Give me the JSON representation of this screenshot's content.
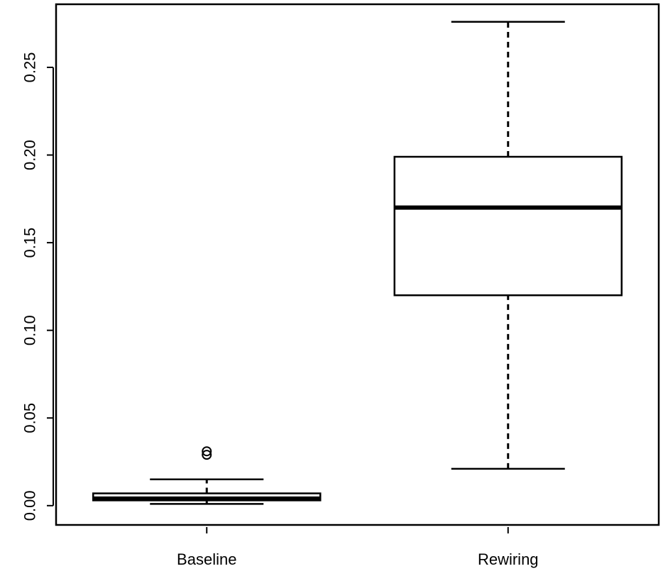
{
  "chart_data": {
    "type": "boxplot",
    "title": "",
    "xlabel": "",
    "ylabel": "",
    "ylim": [
      -0.011,
      0.286
    ],
    "grid": false,
    "legend": "none",
    "y_ticks": [
      0.0,
      0.05,
      0.1,
      0.15,
      0.2,
      0.25
    ],
    "y_tick_labels": [
      "0.00",
      "0.05",
      "0.10",
      "0.15",
      "0.20",
      "0.25"
    ],
    "categories": [
      "Baseline",
      "Rewiring"
    ],
    "boxes": [
      {
        "category": "Baseline",
        "whisker_low": 0.001,
        "q1": 0.003,
        "median": 0.004,
        "q3": 0.007,
        "whisker_high": 0.015,
        "outliers": [
          0.029,
          0.031
        ]
      },
      {
        "category": "Rewiring",
        "whisker_low": 0.021,
        "q1": 0.12,
        "median": 0.17,
        "q3": 0.199,
        "whisker_high": 0.276,
        "outliers": []
      }
    ],
    "colors": {
      "stroke": "#000000",
      "box_fill": "#ffffff"
    }
  }
}
